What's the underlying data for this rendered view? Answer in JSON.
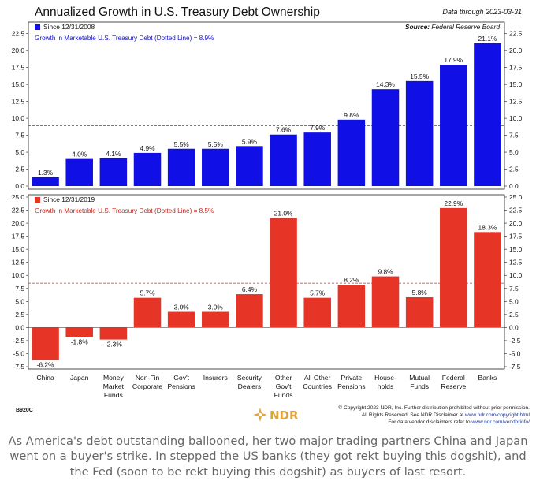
{
  "header": {
    "title": "Annualized Growth in U.S. Treasury Debt Ownership",
    "data_through": "Data through 2023-03-31"
  },
  "source": {
    "label": "Source:",
    "value": "Federal Reserve Board"
  },
  "chart_data": [
    {
      "type": "bar",
      "legend": "Since 12/31/2008",
      "reference_line_label": "Growth in Marketable U.S. Treasury Debt (Dotted Line) = 8.9%",
      "reference_value": 8.9,
      "categories": [
        "China",
        "Japan",
        "Money Market Funds",
        "Non-Fin Corporate",
        "Gov't Pensions",
        "Insurers",
        "Security Dealers",
        "Other Gov't Funds",
        "All Other Countries",
        "Private Pensions",
        "House-holds",
        "Mutual Funds",
        "Federal Reserve",
        "Banks"
      ],
      "values": [
        1.3,
        4.0,
        4.1,
        4.9,
        5.5,
        5.5,
        5.9,
        7.6,
        7.9,
        9.8,
        14.3,
        15.5,
        17.9,
        21.1
      ],
      "data_labels": [
        "1.3%",
        "4.0%",
        "4.1%",
        "4.9%",
        "5.5%",
        "5.5%",
        "5.9%",
        "7.6%",
        "7.9%",
        "9.8%",
        "14.3%",
        "15.5%",
        "17.9%",
        "21.1%"
      ],
      "ylim": [
        0,
        23.75
      ],
      "yticks": [
        0,
        2.5,
        5,
        7.5,
        10,
        12.5,
        15,
        17.5,
        20,
        22.5
      ],
      "ytick_labels": [
        "0.0",
        "2.5",
        "5.0",
        "7.5",
        "10.0",
        "12.5",
        "15.0",
        "17.5",
        "20.0",
        "22.5"
      ],
      "color": "#1010e6"
    },
    {
      "type": "bar",
      "legend": "Since 12/31/2019",
      "reference_line_label": "Growth in Marketable U.S. Treasury Debt (Dotted Line) = 8.5%",
      "reference_value": 8.5,
      "categories": [
        "China",
        "Japan",
        "Money Market Funds",
        "Non-Fin Corporate",
        "Gov't Pensions",
        "Insurers",
        "Security Dealers",
        "Other Gov't Funds",
        "All Other Countries",
        "Private Pensions",
        "House-holds",
        "Mutual Funds",
        "Federal Reserve",
        "Banks"
      ],
      "values": [
        -6.2,
        -1.8,
        -2.3,
        5.7,
        3.0,
        3.0,
        6.4,
        21.0,
        5.7,
        8.2,
        9.8,
        5.8,
        22.9,
        18.3
      ],
      "data_labels": [
        "-6.2%",
        "-1.8%",
        "-2.3%",
        "5.7%",
        "3.0%",
        "3.0%",
        "6.4%",
        "21.0%",
        "5.7%",
        "8.2%",
        "9.8%",
        "5.8%",
        "22.9%",
        "18.3%"
      ],
      "ylim": [
        -7.5,
        25.0
      ],
      "yticks": [
        -7.5,
        -5,
        -2.5,
        0,
        2.5,
        5,
        7.5,
        10,
        12.5,
        15,
        17.5,
        20,
        22.5,
        25
      ],
      "ytick_labels": [
        "-7.5",
        "-5.0",
        "-2.5",
        "0.0",
        "2.5",
        "5.0",
        "7.5",
        "10.0",
        "12.5",
        "15.0",
        "17.5",
        "20.0",
        "22.5",
        "25.0"
      ],
      "color": "#e63526"
    }
  ],
  "x_axis_labels": [
    [
      "China"
    ],
    [
      "Japan"
    ],
    [
      "Money",
      "Market",
      "Funds"
    ],
    [
      "Non-Fin",
      "Corporate"
    ],
    [
      "Gov't",
      "Pensions"
    ],
    [
      "Insurers"
    ],
    [
      "Security",
      "Dealers"
    ],
    [
      "Other",
      "Gov't",
      "Funds"
    ],
    [
      "All Other",
      "Countries"
    ],
    [
      "Private",
      "Pensions"
    ],
    [
      "House-",
      "holds"
    ],
    [
      "Mutual",
      "Funds"
    ],
    [
      "Federal",
      "Reserve"
    ],
    [
      "Banks"
    ]
  ],
  "footer": {
    "chart_id": "B920C",
    "logo_text": "NDR",
    "copyright_line1": "© Copyright 2023 NDR, Inc. Further distribution prohibited without prior permission.",
    "copyright_line2_prefix": "All Rights Reserved. See NDR Disclaimer at ",
    "copyright_line2_link": "www.ndr.com/copyright.html",
    "copyright_line3_prefix": "For data vendor disclaimers refer to ",
    "copyright_line3_link": "www.ndr.com/vendorinfo/"
  },
  "caption": "As America's debt outstanding ballooned, her two major trading partners China and Japan went on a buyer's strike. In stepped the US banks (they got rekt buying this dogshit), and the Fed (soon to be rekt buying this dogshit) as buyers of last resort."
}
